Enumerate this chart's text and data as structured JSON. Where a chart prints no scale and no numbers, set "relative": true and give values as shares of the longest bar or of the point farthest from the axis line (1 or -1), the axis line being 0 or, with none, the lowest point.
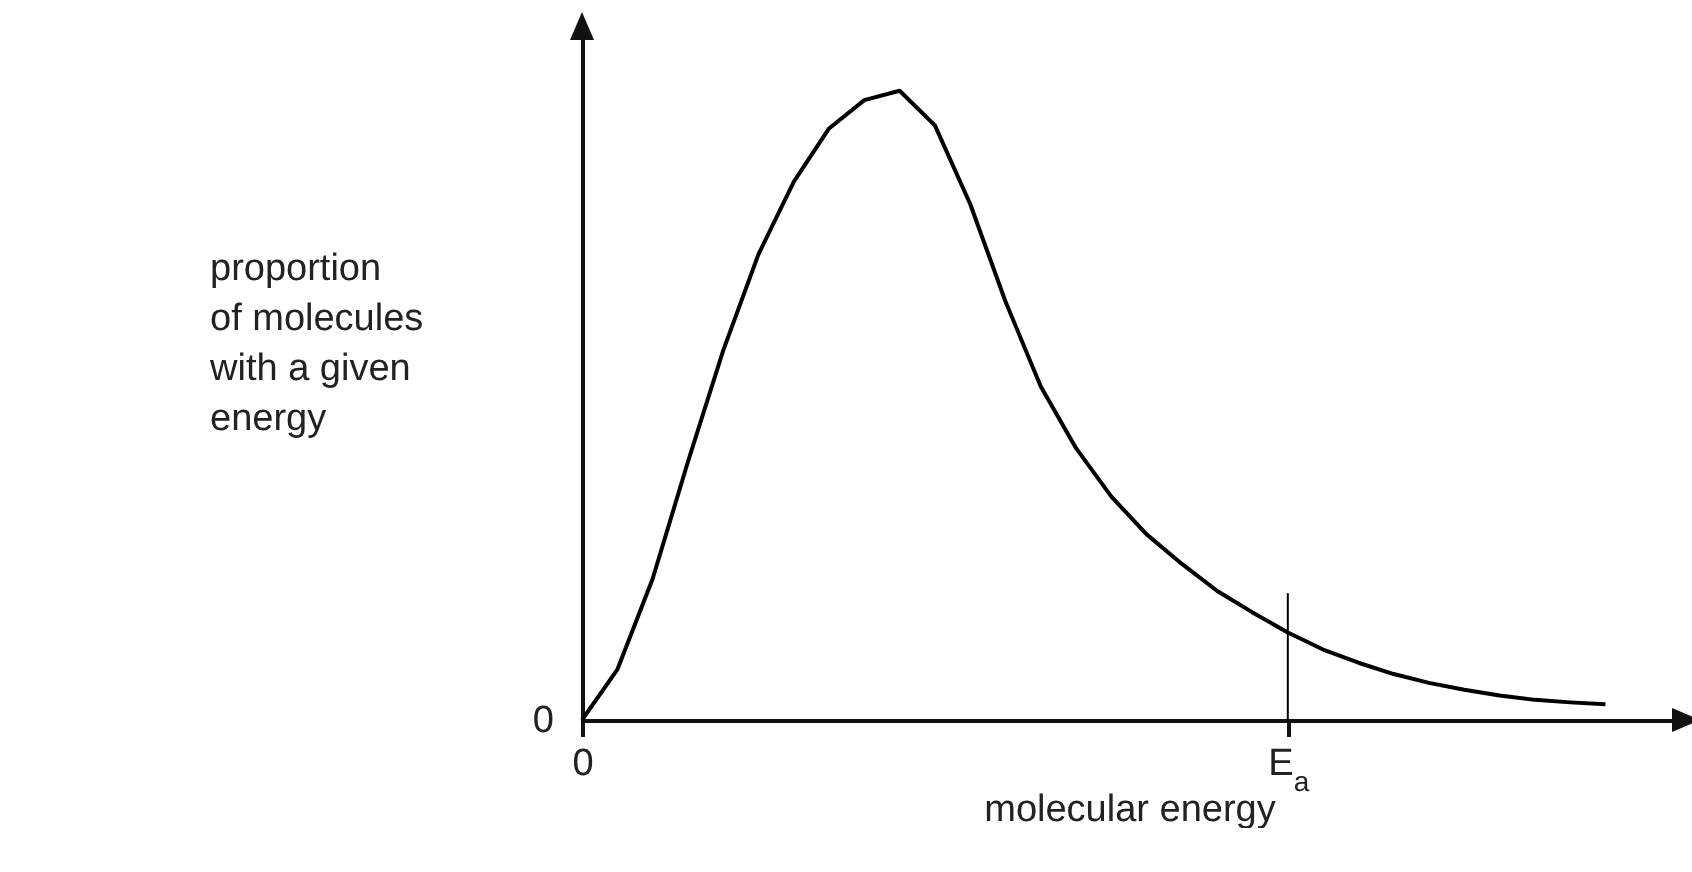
{
  "chart_data": {
    "type": "line",
    "relative": true,
    "xlabel": "molecular energy",
    "ylabel": "proportion of molecules with a given energy",
    "categories": [
      "0",
      null,
      null,
      null,
      null,
      null,
      null,
      null,
      null,
      null,
      null,
      null,
      null,
      null,
      null,
      null,
      null,
      null,
      null,
      null,
      "E$_{a}$",
      null,
      null,
      null,
      null,
      null,
      null,
      null,
      null,
      null
    ],
    "series": [
      {
        "color": "#000000",
        "values": [
          0,
          0.08,
          0.224,
          0.41,
          0.587,
          0.74,
          0.855,
          0.94,
          0.985,
          1,
          0.945,
          0.82,
          0.665,
          0.53,
          0.432,
          0.355,
          0.295,
          0.248,
          0.205,
          0.171,
          0.139,
          0.112,
          0.091,
          0.073,
          0.059,
          0.048,
          0.039,
          0.032,
          0.028,
          0.025
        ]
      }
    ],
    "ref_lines": [
      {
        "axis": "x",
        "value": "E$_{a}$",
        "color": "#000000"
      }
    ],
    "annotations": [
      {
        "text": "0",
        "x": "0",
        "y": 0
      }
    ],
    "marker": "none",
    "line_style": "solid"
  }
}
